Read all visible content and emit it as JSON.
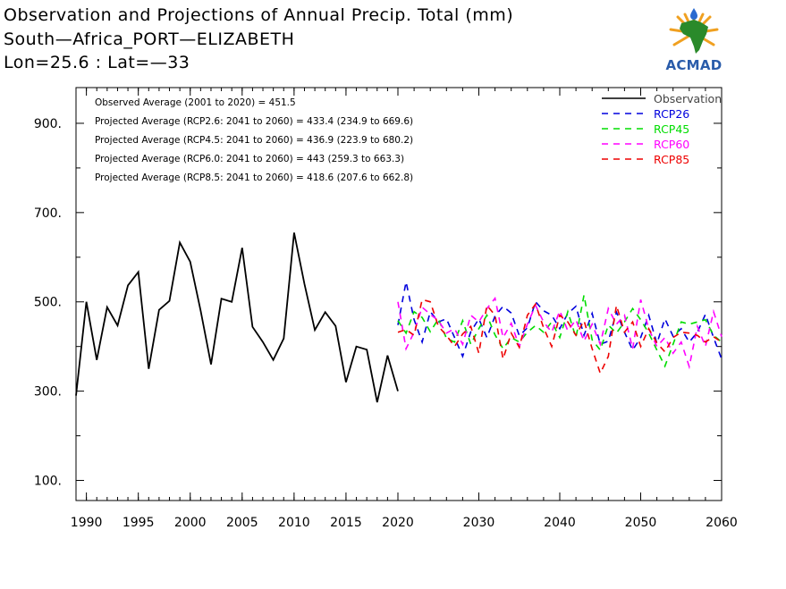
{
  "header": {
    "title": "Observation and Projections of Annual Precip. Total (mm)",
    "location": "South—Africa_PORT—ELIZABETH",
    "coords": "Lon=25.6 : Lat=—33"
  },
  "logo": {
    "text": "ACMAD",
    "icon": "africa-sun-drop-logo"
  },
  "colors": {
    "observation": "#000000",
    "RCP26": "#0000dd",
    "RCP45": "#00dd00",
    "RCP60": "#ff00ff",
    "RCP85": "#ee0000"
  },
  "chart_data": {
    "type": "line",
    "title": "Observation and Projections of Annual Precip. Total (mm)",
    "xlabel": "",
    "ylabel": "",
    "xlim": [
      1989,
      2060
    ],
    "ylim": [
      55,
      980
    ],
    "x_break": {
      "observed_range": [
        1989,
        2020
      ],
      "projected_range": [
        2020,
        2060
      ]
    },
    "x_ticks_observed": [
      "1990",
      "1995",
      "2000",
      "2005",
      "2010",
      "2015",
      "2020"
    ],
    "x_ticks_projected": [
      "2030",
      "2040",
      "2050",
      "2060"
    ],
    "y_ticks": [
      {
        "value": 100,
        "label": "100."
      },
      {
        "value": 300,
        "label": "300."
      },
      {
        "value": 500,
        "label": "500."
      },
      {
        "value": 700,
        "label": "700."
      },
      {
        "value": 900,
        "label": "900."
      }
    ],
    "grid": false,
    "legend_position": "top-right",
    "legend": [
      "Observation",
      "RCP26",
      "RCP45",
      "RCP60",
      "RCP85"
    ],
    "annotations": [
      "Observed Average (2001 to 2020) = 451.5",
      "Projected Average (RCP2.6: 2041 to 2060) = 433.4 (234.9 to 669.6)",
      "Projected Average (RCP4.5: 2041 to 2060) = 436.9 (223.9 to 680.2)",
      "Projected Average (RCP6.0: 2041 to 2060) = 443 (259.3 to 663.3)",
      "Projected Average (RCP8.5: 2041 to 2060) = 418.6 (207.6 to 662.8)"
    ],
    "observation": {
      "name": "Observation",
      "x": [
        1989,
        1990,
        1991,
        1992,
        1993,
        1994,
        1995,
        1996,
        1997,
        1998,
        1999,
        2000,
        2001,
        2002,
        2003,
        2004,
        2005,
        2006,
        2007,
        2008,
        2009,
        2010,
        2011,
        2012,
        2013,
        2014,
        2015,
        2016,
        2017,
        2018,
        2019,
        2020
      ],
      "values": [
        290,
        500,
        370,
        488,
        447,
        537,
        567,
        350,
        482,
        502,
        633,
        590,
        480,
        360,
        507,
        500,
        621,
        444,
        410,
        370,
        418,
        655,
        540,
        437,
        477,
        446,
        320,
        400,
        393,
        275,
        380,
        300
      ]
    },
    "series": [
      {
        "name": "RCP26",
        "x": [
          2020,
          2021,
          2022,
          2023,
          2024,
          2025,
          2026,
          2027,
          2028,
          2029,
          2030,
          2031,
          2032,
          2033,
          2034,
          2035,
          2036,
          2037,
          2038,
          2039,
          2040,
          2041,
          2042,
          2043,
          2044,
          2045,
          2046,
          2047,
          2048,
          2049,
          2050,
          2051,
          2052,
          2053,
          2054,
          2055,
          2056,
          2057,
          2058,
          2059,
          2060
        ],
        "values": [
          448,
          545,
          460,
          410,
          478,
          455,
          462,
          420,
          378,
          433,
          462,
          420,
          468,
          490,
          475,
          424,
          442,
          500,
          480,
          470,
          440,
          474,
          490,
          425,
          474,
          405,
          412,
          477,
          432,
          392,
          420,
          470,
          407,
          462,
          423,
          440,
          410,
          432,
          472,
          420,
          372
        ]
      },
      {
        "name": "RCP45",
        "x": [
          2020,
          2021,
          2022,
          2023,
          2024,
          2025,
          2026,
          2027,
          2028,
          2029,
          2030,
          2031,
          2032,
          2033,
          2034,
          2035,
          2036,
          2037,
          2038,
          2039,
          2040,
          2041,
          2042,
          2043,
          2044,
          2045,
          2046,
          2047,
          2048,
          2049,
          2050,
          2051,
          2052,
          2053,
          2054,
          2055,
          2056,
          2057,
          2058,
          2059,
          2060
        ],
        "values": [
          458,
          430,
          478,
          465,
          433,
          462,
          418,
          410,
          458,
          405,
          440,
          470,
          426,
          395,
          420,
          410,
          432,
          447,
          432,
          455,
          420,
          478,
          420,
          515,
          415,
          392,
          448,
          430,
          455,
          485,
          460,
          430,
          392,
          356,
          405,
          455,
          450,
          455,
          460,
          425,
          410
        ]
      },
      {
        "name": "RCP60",
        "x": [
          2020,
          2021,
          2022,
          2023,
          2024,
          2025,
          2026,
          2027,
          2028,
          2029,
          2030,
          2031,
          2032,
          2033,
          2034,
          2035,
          2036,
          2037,
          2038,
          2039,
          2040,
          2041,
          2042,
          2043,
          2044,
          2045,
          2046,
          2047,
          2048,
          2049,
          2050,
          2051,
          2052,
          2053,
          2054,
          2055,
          2056,
          2057,
          2058,
          2059,
          2060
        ],
        "values": [
          500,
          395,
          432,
          488,
          472,
          458,
          430,
          440,
          405,
          470,
          455,
          485,
          508,
          420,
          452,
          400,
          450,
          492,
          455,
          432,
          480,
          435,
          460,
          412,
          450,
          405,
          485,
          450,
          470,
          395,
          505,
          440,
          400,
          420,
          385,
          410,
          355,
          445,
          400,
          478,
          422
        ]
      },
      {
        "name": "RCP85",
        "x": [
          2020,
          2021,
          2022,
          2023,
          2024,
          2025,
          2026,
          2027,
          2028,
          2029,
          2030,
          2031,
          2032,
          2033,
          2034,
          2035,
          2036,
          2037,
          2038,
          2039,
          2040,
          2041,
          2042,
          2043,
          2044,
          2045,
          2046,
          2047,
          2048,
          2049,
          2050,
          2051,
          2052,
          2053,
          2054,
          2055,
          2056,
          2057,
          2058,
          2059,
          2060
        ],
        "values": [
          432,
          438,
          425,
          505,
          500,
          445,
          425,
          400,
          428,
          445,
          385,
          492,
          470,
          372,
          430,
          398,
          470,
          495,
          442,
          400,
          470,
          455,
          425,
          458,
          395,
          340,
          378,
          492,
          432,
          455,
          400,
          440,
          408,
          388,
          420,
          432,
          430,
          425,
          410,
          422,
          410
        ]
      }
    ]
  }
}
